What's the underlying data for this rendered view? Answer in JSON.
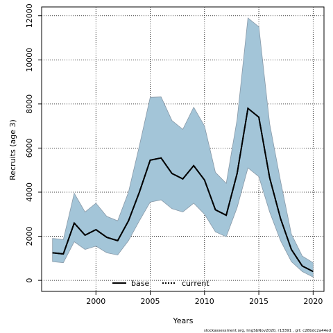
{
  "chart_data": {
    "type": "line",
    "title": "",
    "xlabel": "Years",
    "ylabel": "Recruits (age 3)",
    "xlim": [
      1995,
      2021
    ],
    "ylim": [
      -500,
      12400
    ],
    "x_ticks": [
      2000,
      2005,
      2010,
      2015,
      2020
    ],
    "y_ticks": [
      0,
      2000,
      4000,
      6000,
      8000,
      10000,
      12000
    ],
    "grid": true,
    "legend_position": "bottom",
    "colors": {
      "band": "#a3c5d8",
      "band_edge": "#8899a8",
      "base": "#000000",
      "current": "#000000"
    },
    "x": [
      1996,
      1997,
      1998,
      1999,
      2000,
      2001,
      2002,
      2003,
      2004,
      2005,
      2006,
      2007,
      2008,
      2009,
      2010,
      2011,
      2012,
      2013,
      2014,
      2015,
      2016,
      2017,
      2018,
      2019,
      2020
    ],
    "band": {
      "upper": [
        1900,
        1850,
        3950,
        3100,
        3500,
        2900,
        2700,
        4000,
        6100,
        8300,
        8320,
        7250,
        6850,
        7850,
        7000,
        4900,
        4400,
        7300,
        11900,
        11500,
        7100,
        4500,
        2100,
        1100,
        800
      ],
      "lower": [
        850,
        800,
        1750,
        1400,
        1550,
        1250,
        1150,
        1800,
        2700,
        3550,
        3650,
        3250,
        3100,
        3500,
        3000,
        2200,
        1980,
        3300,
        5100,
        4700,
        3100,
        1800,
        850,
        400,
        150
      ]
    },
    "series": [
      {
        "name": "base",
        "style": "solid",
        "values": [
          1250,
          1200,
          2600,
          2050,
          2300,
          1950,
          1800,
          2700,
          4000,
          5450,
          5550,
          4850,
          4600,
          5200,
          4550,
          3200,
          2950,
          4850,
          7800,
          7400,
          4650,
          2800,
          1400,
          650,
          400
        ]
      },
      {
        "name": "current",
        "style": "dotted",
        "values": [
          1250,
          1200,
          2600,
          2050,
          2300,
          1950,
          1800,
          2700,
          4000,
          5450,
          5550,
          4850,
          4600,
          5200,
          4550,
          3200,
          2950,
          4850,
          7800,
          7400,
          4650,
          2800,
          1400,
          650,
          400
        ]
      }
    ],
    "footnote": "stockassessment.org, lingSbNov2020, r13391 , git: c28bdc2a44ed"
  }
}
